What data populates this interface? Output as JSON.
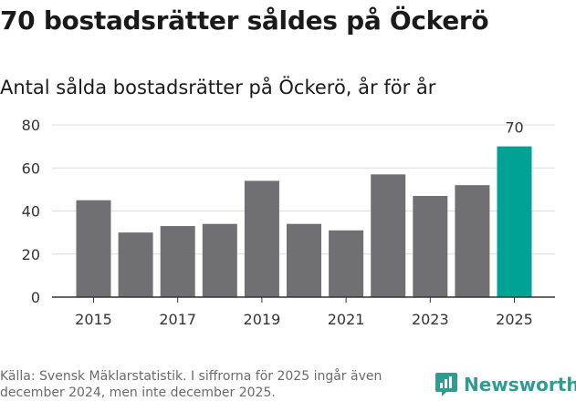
{
  "title": "70 bostadsrätter såldes på Öckerö",
  "subtitle": "Antal sålda bostadsrätter på Öckerö, år för år",
  "source": "Källa: Svensk Mäklarstatistik. I siffrorna för 2025 ingår även december 2024, men inte december 2025.",
  "brand": "Newsworthy",
  "colors": {
    "bar": "#706f73",
    "highlight": "#00a295",
    "grid": "#dcdcdc",
    "axis": "#333333",
    "brand": "#2f9c91"
  },
  "chart_data": {
    "type": "bar",
    "categories": [
      "2015",
      "2016",
      "2017",
      "2018",
      "2019",
      "2020",
      "2021",
      "2022",
      "2023",
      "2024",
      "2025"
    ],
    "values": [
      45,
      30,
      33,
      34,
      54,
      34,
      31,
      57,
      47,
      52,
      70
    ],
    "highlight_index": 10,
    "highlight_label": "70",
    "x_tick_labels": [
      "2015",
      "2017",
      "2019",
      "2021",
      "2023",
      "2025"
    ],
    "y_ticks": [
      "0",
      "20",
      "40",
      "60",
      "80"
    ],
    "ylim": [
      0,
      80
    ],
    "title": "70 bostadsrätter såldes på Öckerö",
    "subtitle": "Antal sålda bostadsrätter på Öckerö, år för år",
    "xlabel": "",
    "ylabel": "",
    "grid": true
  }
}
